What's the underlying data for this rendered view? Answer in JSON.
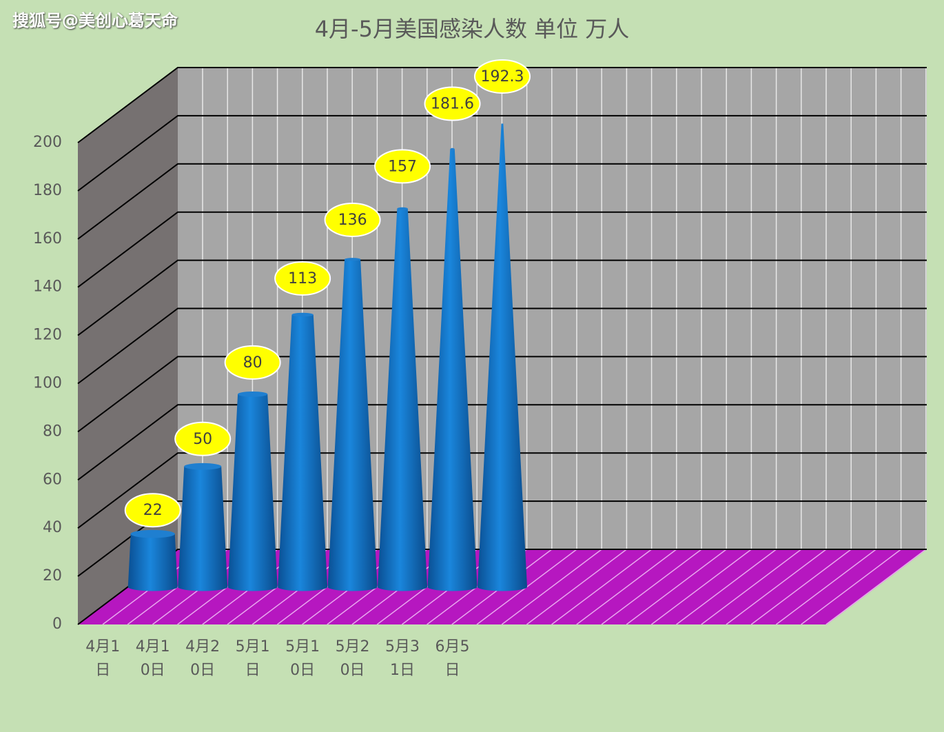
{
  "watermark": "搜狐号@美创心葛天命",
  "chart_data": {
    "type": "cone3d",
    "title": "4月-5月美国感染人数 单位 万人",
    "categories": [
      "4月1日",
      "4月10日",
      "4月20日",
      "5月1日",
      "5月10日",
      "5月20日",
      "5月31日",
      "6月5日"
    ],
    "values": [
      22,
      50,
      80,
      113,
      136,
      157,
      181.6,
      192.3
    ],
    "color": "#0f6fc6",
    "ylim": [
      0,
      200
    ],
    "yticks": [
      0,
      20,
      40,
      60,
      80,
      100,
      120,
      140,
      160,
      180,
      200
    ],
    "grid": true
  }
}
